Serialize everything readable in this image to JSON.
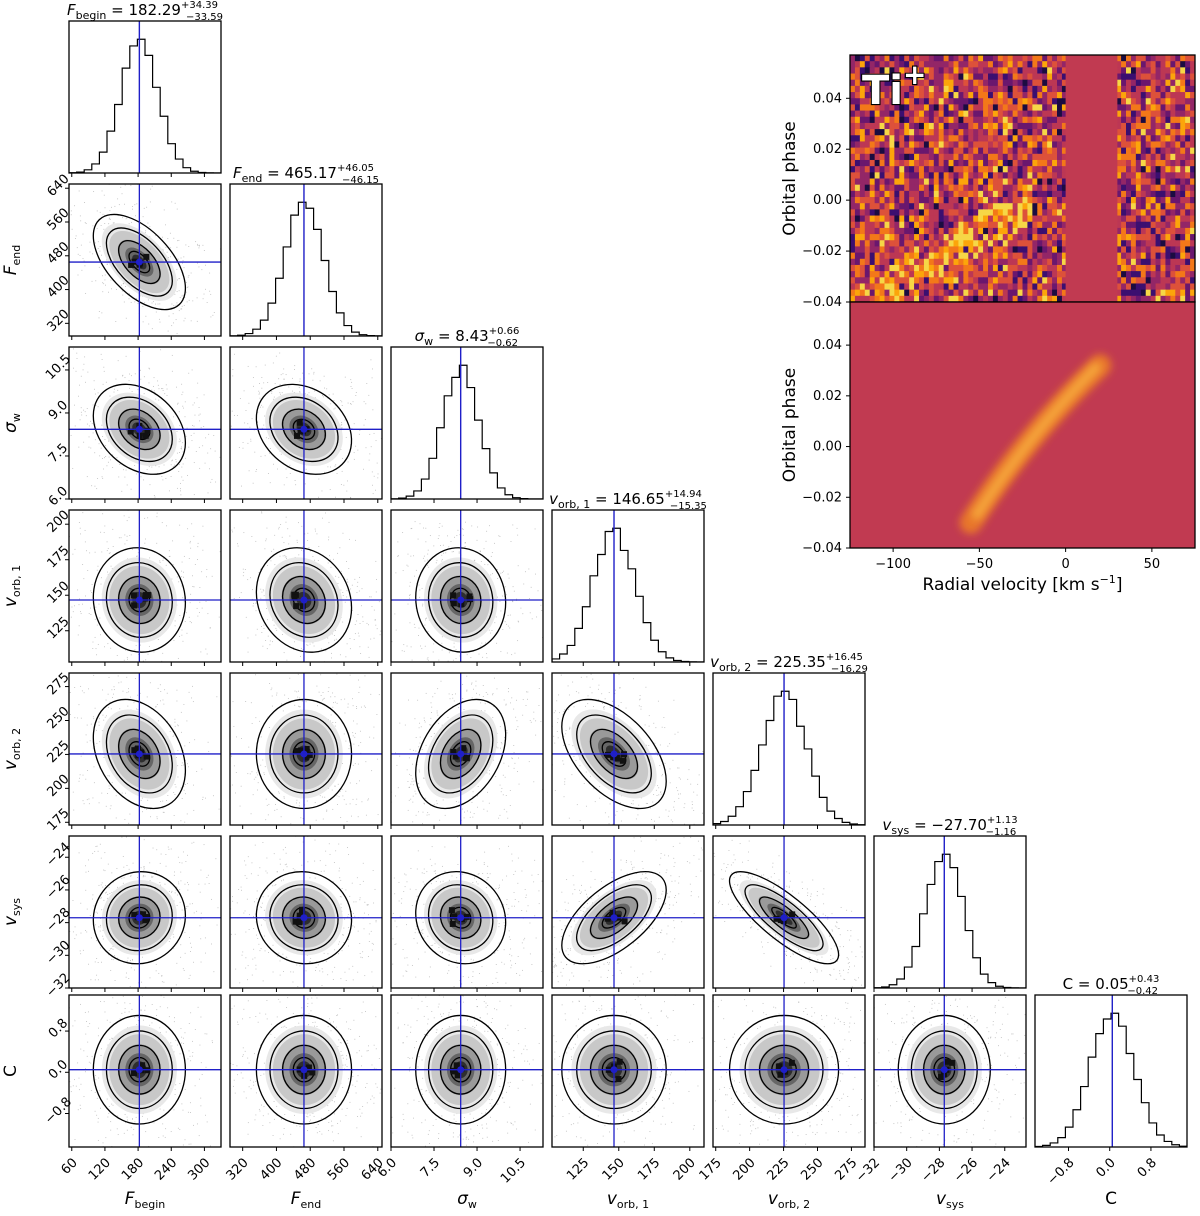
{
  "chart_data": [
    {
      "type": "corner",
      "parameters": [
        {
          "key": "F_begin",
          "label": "F",
          "sub": "begin",
          "italic": true,
          "title": {
            "value": "182.29",
            "plus": "+34.39",
            "minus": "−33.59"
          },
          "median": 182.29,
          "sd": 34,
          "range": [
            55,
            330
          ],
          "ticks": [
            60,
            120,
            180,
            240,
            300
          ],
          "tick_labels": [
            "60",
            "120",
            "180",
            "240",
            "300"
          ]
        },
        {
          "key": "F_end",
          "label": "F",
          "sub": "end",
          "italic": true,
          "title": {
            "value": "465.17",
            "plus": "+46.05",
            "minus": "−46.15"
          },
          "median": 465.17,
          "sd": 46,
          "range": [
            290,
            650
          ],
          "ticks": [
            320,
            400,
            480,
            560,
            640
          ],
          "tick_labels": [
            "320",
            "400",
            "480",
            "560",
            "640"
          ]
        },
        {
          "key": "sigma_w",
          "label": "σ",
          "sub": "w",
          "italic": true,
          "title": {
            "value": "8.43",
            "plus": "+0.66",
            "minus": "−0.62"
          },
          "median": 8.43,
          "sd": 0.64,
          "range": [
            6.0,
            11.3
          ],
          "ticks": [
            6.0,
            7.5,
            9.0,
            10.5
          ],
          "tick_labels": [
            "6.0",
            "7.5",
            "9.0",
            "10.5"
          ]
        },
        {
          "key": "v_orb1",
          "label": "v",
          "sub": "orb, 1",
          "italic": true,
          "title": {
            "value": "146.65",
            "plus": "+14.94",
            "minus": "−15.35"
          },
          "median": 146.65,
          "sd": 15,
          "range": [
            103,
            210
          ],
          "ticks": [
            125,
            150,
            175,
            200
          ],
          "tick_labels": [
            "125",
            "150",
            "175",
            "200"
          ]
        },
        {
          "key": "v_orb2",
          "label": "v",
          "sub": "orb, 2",
          "italic": true,
          "title": {
            "value": "225.35",
            "plus": "+16.45",
            "minus": "−16.29"
          },
          "median": 225.35,
          "sd": 16.4,
          "range": [
            173,
            285
          ],
          "ticks": [
            175,
            200,
            225,
            250,
            275
          ],
          "tick_labels": [
            "175",
            "200",
            "225",
            "250",
            "275"
          ]
        },
        {
          "key": "v_sys",
          "label": "v",
          "sub": "sys",
          "italic": true,
          "title": {
            "value": "−27.70",
            "plus": "+1.13",
            "minus": "−1.16"
          },
          "median": -27.7,
          "sd": 1.15,
          "range": [
            -32,
            -22.7
          ],
          "ticks": [
            -32,
            -30,
            -28,
            -26,
            -24
          ],
          "tick_labels": [
            "−32",
            "−30",
            "−28",
            "−26",
            "−24"
          ]
        },
        {
          "key": "C",
          "label": "C",
          "sub": "",
          "italic": false,
          "title": {
            "value": "0.05",
            "plus": "+0.43",
            "minus": "−0.42"
          },
          "median": 0.05,
          "sd": 0.43,
          "range": [
            -1.45,
            1.5
          ],
          "ticks": [
            -0.8,
            0.0,
            0.8
          ],
          "tick_labels": [
            "−0.8",
            "0.0",
            "0.8"
          ]
        }
      ],
      "correlations": {
        "1,0": -0.55,
        "2,0": -0.3,
        "2,1": -0.25,
        "3,0": -0.05,
        "3,1": -0.15,
        "3,2": -0.05,
        "4,0": -0.3,
        "4,1": 0.0,
        "4,2": 0.35,
        "4,3": -0.5,
        "5,0": 0.05,
        "5,1": -0.05,
        "5,2": -0.1,
        "5,3": 0.6,
        "5,4": -0.8,
        "6,0": 0.0,
        "6,1": 0.0,
        "6,2": 0.0,
        "6,3": 0.0,
        "6,4": 0.0,
        "6,5": 0.0
      },
      "truth_color": "#1f1fc8",
      "hist_color": "#000000"
    },
    {
      "type": "heatmap",
      "name": "observed",
      "species": "Ti",
      "species_sup": "+",
      "ylabel": "Orbital phase",
      "xlim": [
        -125,
        75
      ],
      "ylim": [
        -0.04,
        0.057
      ],
      "yticks": [
        -0.04,
        -0.02,
        0.0,
        0.02,
        0.04
      ],
      "ytick_labels": [
        "−0.04",
        "−0.02",
        "0.00",
        "0.02",
        "0.04"
      ],
      "masked_rv": [
        0,
        30
      ],
      "colormap": "inferno",
      "mask_color": "#c13a51"
    },
    {
      "type": "heatmap",
      "name": "model",
      "ylabel": "Orbital phase",
      "xlabel": "Radial velocity [km s",
      "xlabel_sup": "−1",
      "xlabel_end": "]",
      "xlim": [
        -125,
        75
      ],
      "ylim": [
        -0.04,
        0.057
      ],
      "xticks": [
        -100,
        -50,
        0,
        50
      ],
      "xtick_labels": [
        "−100",
        "−50",
        "0",
        "50"
      ],
      "yticks": [
        -0.04,
        -0.02,
        0.0,
        0.02,
        0.04
      ],
      "ytick_labels": [
        "−0.04",
        "−0.02",
        "0.00",
        "0.02",
        "0.04"
      ],
      "trail": {
        "phase_start": -0.03,
        "phase_end": 0.032,
        "rv_start": -55,
        "rv_end": 20,
        "width_rv": 13
      },
      "background_color": "#c13a51"
    }
  ]
}
